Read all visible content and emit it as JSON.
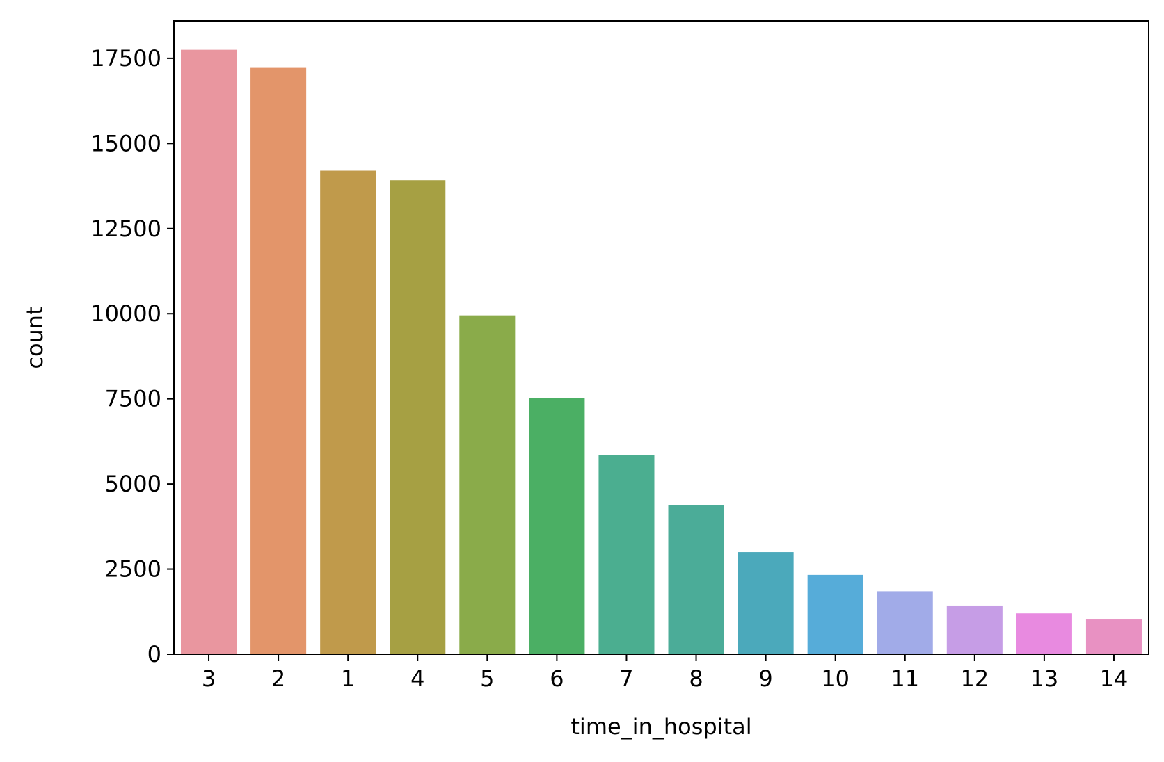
{
  "chart_data": {
    "type": "bar",
    "title": "",
    "xlabel": "time_in_hospital",
    "ylabel": "count",
    "categories": [
      "3",
      "2",
      "1",
      "4",
      "5",
      "6",
      "7",
      "8",
      "9",
      "10",
      "11",
      "12",
      "13",
      "14"
    ],
    "values": [
      17750,
      17220,
      14200,
      13920,
      9950,
      7530,
      5850,
      4380,
      3000,
      2330,
      1850,
      1430,
      1200,
      1020
    ],
    "colors": [
      "#e9969f",
      "#e3956a",
      "#c09a4b",
      "#a6a043",
      "#8aab4a",
      "#4baf64",
      "#4bae90",
      "#4bac98",
      "#4ba9bb",
      "#56acd9",
      "#a1abe8",
      "#c69de6",
      "#e88ae0",
      "#e891c2"
    ],
    "ylim": [
      0,
      18600
    ],
    "yticks": [
      0,
      2500,
      5000,
      7500,
      10000,
      12500,
      15000,
      17500
    ],
    "ytick_labels": [
      "0",
      "2500",
      "5000",
      "7500",
      "10000",
      "12500",
      "15000",
      "17500"
    ],
    "grid": false,
    "legend": "none"
  }
}
